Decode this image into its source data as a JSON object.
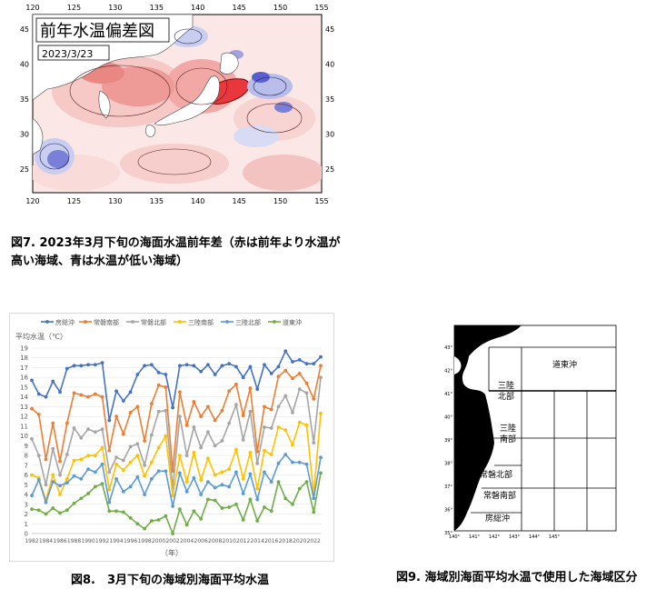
{
  "fig7": {
    "title": "前年水温偏差図",
    "date": "2023/3/23",
    "caption_line1": "図7. 2023年3月下旬の海面水温前年差（赤は前年より水温が",
    "caption_line2": "高い海域、青は水温が低い海域）",
    "lon_ticks": [
      "120",
      "125",
      "130",
      "135",
      "140",
      "145",
      "150",
      "155"
    ],
    "lat_ticks": [
      "45",
      "40",
      "35",
      "30",
      "25"
    ],
    "colors": {
      "warm": "#e8383d",
      "warm_light": "#f6c9c7",
      "cool": "#3a3fc8",
      "cool_light": "#c9cdf0"
    }
  },
  "fig8": {
    "caption": "図8.　3月下旬の海域別海面平均水温",
    "ylabel": "平均水温（℃）",
    "xlabel": "（年）"
  },
  "chart_data": {
    "type": "line",
    "x": [
      1982,
      1983,
      1984,
      1985,
      1986,
      1987,
      1988,
      1989,
      1990,
      1991,
      1992,
      1993,
      1994,
      1995,
      1996,
      1997,
      1998,
      1999,
      2000,
      2001,
      2002,
      2003,
      2004,
      2005,
      2006,
      2007,
      2008,
      2009,
      2010,
      2011,
      2012,
      2013,
      2014,
      2015,
      2016,
      2017,
      2018,
      2019,
      2020,
      2021,
      2022,
      2023
    ],
    "x_tick_labels": [
      "1982",
      "1984",
      "1986",
      "1988",
      "1990",
      "1992",
      "1994",
      "1996",
      "1998",
      "2000",
      "2002",
      "2004",
      "2006",
      "2008",
      "2010",
      "2012",
      "2014",
      "2016",
      "2018",
      "2020",
      "2022"
    ],
    "ylim": [
      0,
      19
    ],
    "y_ticks": [
      0,
      1,
      2,
      3,
      4,
      5,
      6,
      7,
      8,
      9,
      10,
      11,
      12,
      13,
      14,
      15,
      16,
      17,
      18,
      19
    ],
    "legend_position": "top",
    "grid": true,
    "series": [
      {
        "name": "房総沖",
        "color": "#4472c4",
        "values": [
          15.7,
          14.3,
          14.0,
          15.6,
          14.5,
          16.9,
          17.2,
          17.2,
          17.3,
          17.3,
          17.5,
          11.6,
          14.6,
          13.6,
          14.5,
          16.3,
          17.2,
          17.3,
          16.5,
          16.3,
          12.9,
          17.2,
          17.3,
          17.2,
          16.6,
          17.3,
          16.3,
          17.2,
          17.4,
          17.1,
          16.0,
          17.1,
          14.8,
          17.3,
          16.4,
          17.1,
          18.7,
          17.6,
          17.8,
          17.4,
          17.4,
          18.1
        ]
      },
      {
        "name": "常磐南部",
        "color": "#ed7d31",
        "values": [
          12.8,
          12.2,
          7.6,
          11.3,
          7.4,
          11.3,
          14.4,
          14.2,
          14.0,
          14.3,
          14.0,
          8.5,
          12.0,
          10.2,
          12.4,
          13.0,
          9.5,
          13.3,
          15.2,
          15.0,
          6.4,
          14.5,
          11.1,
          13.5,
          12.0,
          13.0,
          11.6,
          12.6,
          14.6,
          15.3,
          12.1,
          14.9,
          8.4,
          13.0,
          12.7,
          16.1,
          16.7,
          15.9,
          16.4,
          15.4,
          13.8,
          17.2
        ]
      },
      {
        "name": "常磐北部",
        "color": "#a5a5a5",
        "values": [
          9.7,
          8.0,
          5.0,
          8.7,
          6.0,
          8.1,
          10.8,
          9.8,
          10.7,
          10.4,
          10.7,
          6.3,
          7.8,
          7.5,
          8.9,
          9.2,
          7.0,
          10.1,
          12.5,
          12.6,
          4.6,
          12.0,
          8.0,
          10.9,
          8.8,
          10.4,
          9.0,
          9.5,
          11.3,
          13.2,
          9.6,
          12.5,
          7.2,
          10.9,
          10.8,
          13.0,
          14.1,
          12.4,
          14.8,
          14.4,
          9.3,
          16.0
        ]
      },
      {
        "name": "三陸南部",
        "color": "#ffc000",
        "values": [
          6.0,
          5.7,
          3.4,
          6.0,
          4.0,
          5.6,
          7.5,
          7.6,
          8.0,
          8.0,
          8.8,
          4.5,
          7.1,
          6.5,
          7.3,
          8.0,
          5.9,
          7.3,
          8.8,
          10.0,
          3.9,
          8.0,
          5.3,
          8.3,
          5.5,
          7.7,
          6.0,
          6.3,
          6.6,
          8.6,
          5.6,
          8.3,
          4.6,
          8.5,
          8.1,
          10.9,
          10.6,
          9.1,
          11.4,
          11.1,
          4.0,
          12.3
        ]
      },
      {
        "name": "三陸北部",
        "color": "#5b9bd5",
        "values": [
          3.9,
          5.5,
          3.2,
          5.3,
          4.9,
          5.2,
          5.9,
          5.6,
          6.6,
          6.3,
          7.1,
          3.2,
          5.6,
          4.3,
          4.8,
          5.8,
          4.0,
          5.6,
          6.4,
          6.4,
          2.8,
          6.2,
          4.3,
          5.7,
          4.0,
          5.3,
          4.7,
          5.0,
          4.8,
          6.3,
          4.1,
          6.1,
          3.5,
          6.3,
          5.3,
          7.2,
          8.1,
          7.3,
          7.3,
          7.1,
          3.6,
          7.8
        ]
      },
      {
        "name": "道東沖",
        "color": "#70ad47",
        "values": [
          2.5,
          2.4,
          2.0,
          2.6,
          2.1,
          2.4,
          3.1,
          3.6,
          4.1,
          4.8,
          5.1,
          2.3,
          2.3,
          2.2,
          1.6,
          1.0,
          0.5,
          1.3,
          1.4,
          1.8,
          0.0,
          2.5,
          0.9,
          2.3,
          1.5,
          3.5,
          3.4,
          2.6,
          2.7,
          3.0,
          1.4,
          3.5,
          1.3,
          2.7,
          2.3,
          5.3,
          3.6,
          3.0,
          4.6,
          5.3,
          2.2,
          6.2
        ]
      }
    ]
  },
  "fig9": {
    "caption": "図9. 海域別海面平均水温で使用した海域区分",
    "lat_ticks": [
      "43°",
      "42°",
      "41°",
      "40°",
      "39°",
      "38°",
      "37°",
      "36°",
      "35°"
    ],
    "lon_ticks": [
      "140°",
      "141°",
      "142°",
      "143°",
      "144°",
      "145°"
    ],
    "regions": {
      "doto": "道東沖",
      "sanriku_north_1": "三陸",
      "sanriku_north_2": "北部",
      "sanriku_south_1": "三陸",
      "sanriku_south_2": "南部",
      "joban_north": "常磐北部",
      "joban_south": "常磐南部",
      "boso": "房総沖"
    }
  }
}
